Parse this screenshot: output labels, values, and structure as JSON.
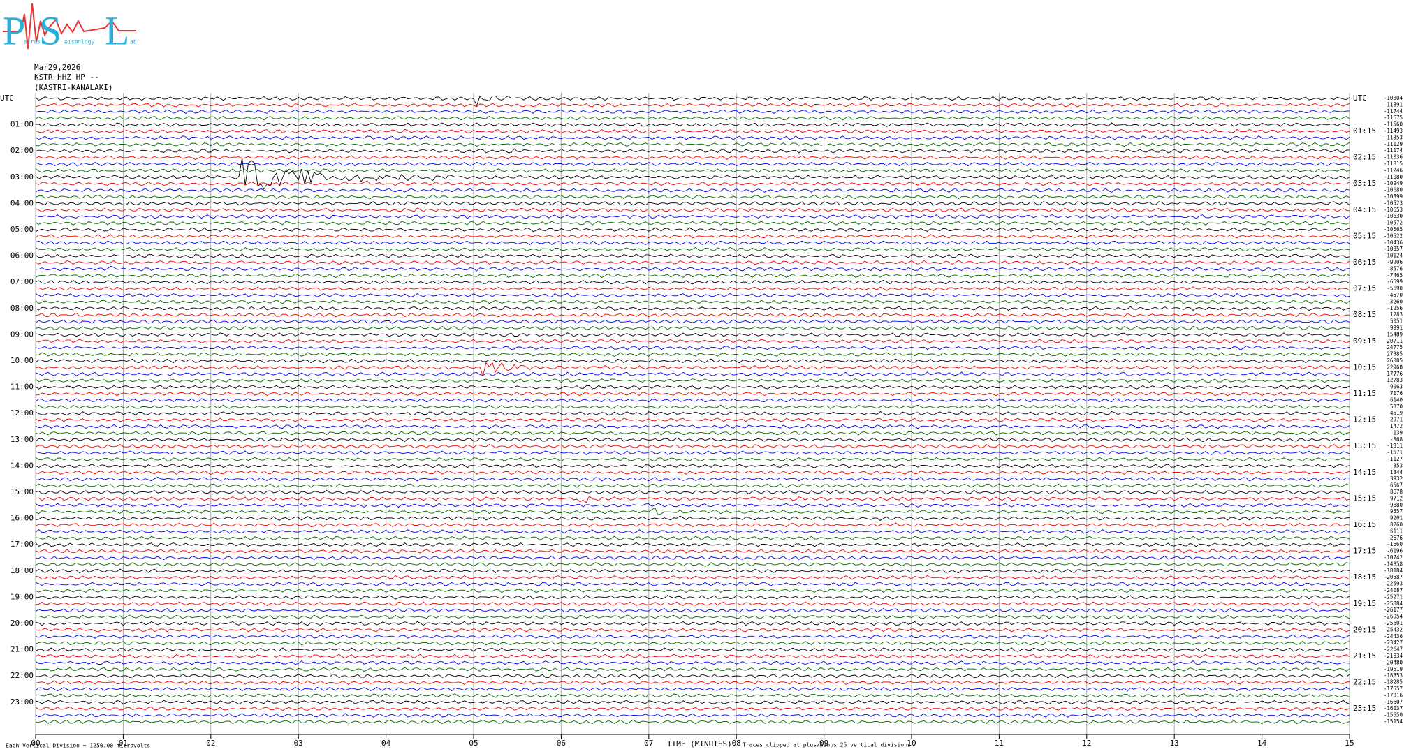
{
  "logo": {
    "letters": [
      "P",
      "S",
      "L"
    ],
    "small": [
      "atras",
      "eismology",
      "ab"
    ]
  },
  "header": {
    "date": "Mar29,2026",
    "station": "KSTR HHZ HP --",
    "site": "(KASTRI-KANALAKI)"
  },
  "left_labels": [
    "UTC",
    "01:00",
    "02:00",
    "03:00",
    "04:00",
    "05:00",
    "06:00",
    "07:00",
    "08:00",
    "09:00",
    "10:00",
    "11:00",
    "12:00",
    "13:00",
    "14:00",
    "15:00",
    "16:00",
    "17:00",
    "18:00",
    "19:00",
    "20:00",
    "21:00",
    "22:00",
    "23:00"
  ],
  "right_labels": [
    "UTC",
    "01:15",
    "02:15",
    "03:15",
    "04:15",
    "05:15",
    "06:15",
    "07:15",
    "08:15",
    "09:15",
    "10:15",
    "11:15",
    "12:15",
    "13:15",
    "14:15",
    "15:15",
    "16:15",
    "17:15",
    "18:15",
    "19:15",
    "20:15",
    "21:15",
    "22:15",
    "23:15"
  ],
  "trace_offsets": [
    -10804,
    -11891,
    -11744,
    -11675,
    -11560,
    -11493,
    -11353,
    -11129,
    -11174,
    -11036,
    -11015,
    -11246,
    -11080,
    -10949,
    -10680,
    -10399,
    -10523,
    -10653,
    -10630,
    -10572,
    -10565,
    -10522,
    -10436,
    -10357,
    -10124,
    -9206,
    -8576,
    -7465,
    -6599,
    -5690,
    -4570,
    -3260,
    -1256,
    1283,
    5051,
    9991,
    15489,
    20711,
    24775,
    27385,
    26085,
    22968,
    17776,
    12783,
    9063,
    7176,
    6140,
    5370,
    4519,
    2971,
    1472,
    139,
    -868,
    -1311,
    -1571,
    -1127,
    -353,
    1344,
    3932,
    6567,
    8678,
    9712,
    9880,
    9557,
    9201,
    8260,
    6111,
    2676,
    -1660,
    -6196,
    -10742,
    -14858,
    -18184,
    -20587,
    -22593,
    -24087,
    -25271,
    -25884,
    -26177,
    -26054,
    -25601,
    -25432,
    -24436,
    -23427,
    -22647,
    -21534,
    -20480,
    -19519,
    -18853,
    -18285,
    -17557,
    -17016,
    -16607,
    -16037,
    -15550,
    -15154
  ],
  "x_ticks": [
    "00",
    "01",
    "02",
    "03",
    "04",
    "05",
    "06",
    "07",
    "08",
    "09",
    "10",
    "11",
    "12",
    "13",
    "14",
    "15"
  ],
  "footer": {
    "division": "Each Vertical Division = 1250.00 microvolts",
    "axis_title": "TIME (MINUTES)",
    "clip": "Traces clipped at plus/minus 25 vertical divisions"
  }
}
